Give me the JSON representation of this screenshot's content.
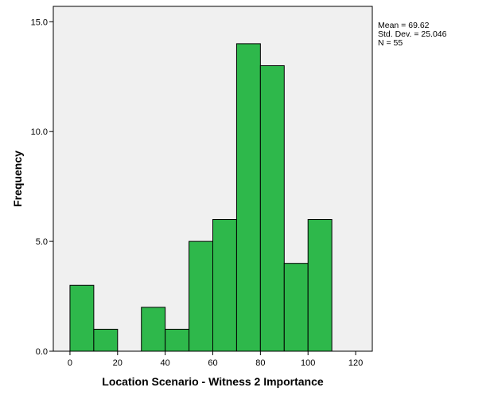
{
  "chart_data": {
    "type": "bar",
    "subtype": "histogram",
    "xlabel": "Location Scenario - Witness 2 Importance",
    "ylabel": "Frequency",
    "xlim": [
      -7,
      127
    ],
    "ylim": [
      0,
      15.7
    ],
    "x_ticks": [
      0,
      20,
      40,
      60,
      80,
      100,
      120
    ],
    "x_tick_labels": [
      "0",
      "20",
      "40",
      "60",
      "80",
      "100",
      "120"
    ],
    "y_ticks": [
      0,
      5,
      10,
      15
    ],
    "y_tick_labels": [
      "0.0",
      "5.0",
      "10.0",
      "15.0"
    ],
    "bin_width": 10,
    "bins": [
      {
        "start": 0,
        "end": 10,
        "value": 3
      },
      {
        "start": 10,
        "end": 20,
        "value": 1
      },
      {
        "start": 20,
        "end": 30,
        "value": 0
      },
      {
        "start": 30,
        "end": 40,
        "value": 2
      },
      {
        "start": 40,
        "end": 50,
        "value": 1
      },
      {
        "start": 50,
        "end": 60,
        "value": 5
      },
      {
        "start": 60,
        "end": 70,
        "value": 6
      },
      {
        "start": 70,
        "end": 80,
        "value": 14
      },
      {
        "start": 80,
        "end": 90,
        "value": 13
      },
      {
        "start": 90,
        "end": 100,
        "value": 4
      },
      {
        "start": 100,
        "end": 110,
        "value": 6
      }
    ],
    "bar_color": "#2eb84b",
    "bar_edge_color": "#000000",
    "plot_background": "#f0f0f0",
    "grid": false,
    "stats": {
      "mean": "Mean = 69.62",
      "std_dev": "Std. Dev. = 25.046",
      "n": "N = 55"
    }
  }
}
